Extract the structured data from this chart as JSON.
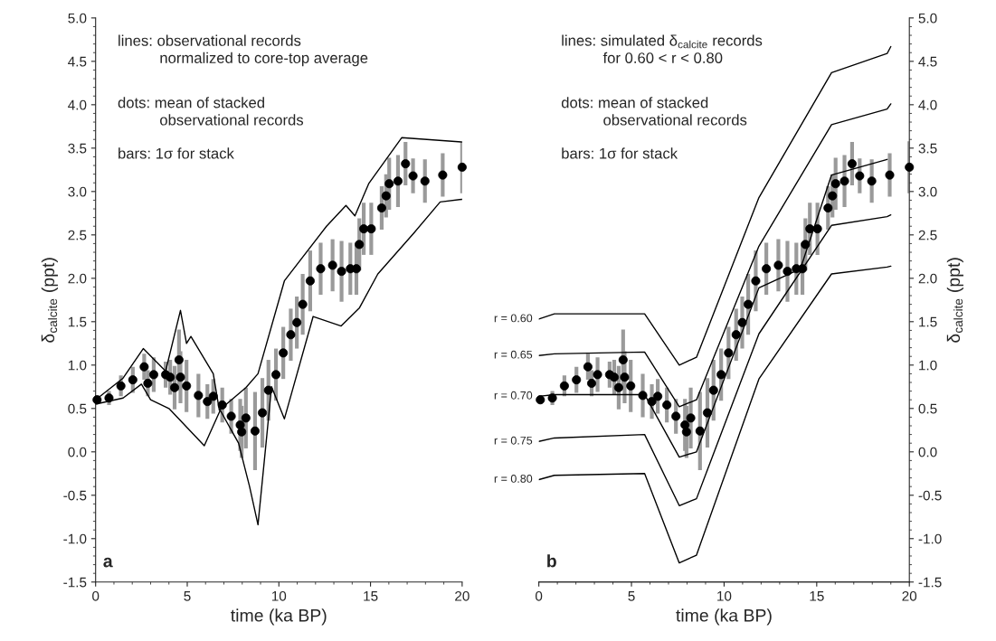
{
  "chart_data": [
    {
      "type": "line",
      "xlabel": "time (ka BP)",
      "ylabel": "δ$_{calcite}$ (ppt)",
      "xlim": [
        0,
        20
      ],
      "xticks": [
        0,
        5,
        10,
        15,
        20
      ],
      "ylim": [
        -1.5,
        5.0
      ],
      "yticks": [
        {
          "value": -1.5,
          "label": "-1.5"
        },
        {
          "value": -1.0,
          "label": "-1.0"
        },
        {
          "value": -0.5,
          "label": "-0.5"
        },
        {
          "value": 0,
          "label": "0.0"
        },
        {
          "value": 0.5,
          "label": "0.5"
        },
        {
          "value": 1.0,
          "label": "1.0"
        },
        {
          "value": 1.5,
          "label": "1.5"
        },
        {
          "value": 2.0,
          "label": "2.0"
        },
        {
          "value": 2.5,
          "label": "2.5"
        },
        {
          "value": 3.0,
          "label": "3.0"
        },
        {
          "value": 3.5,
          "label": "3.5"
        },
        {
          "value": 4.0,
          "label": "4.0"
        },
        {
          "value": 4.5,
          "label": "4.5"
        },
        {
          "value": 5.0,
          "label": "5.0"
        }
      ],
      "grid": false,
      "legend": false,
      "annotations": [
        "lines: observational records\n          normalized to core-top average",
        "dots: mean of stacked\n          observational records",
        "bars: 1σ for stack",
        "a"
      ],
      "series": [
        {
          "color": "#000000",
          "x": [
            0,
            1.5,
            2.6,
            3.82,
            4.63,
            4.96,
            5.2,
            6.42,
            6.75,
            8.2,
            8.86,
            10.3,
            12.6,
            13.66,
            14.15,
            14.9,
            16.7,
            20
          ],
          "values": [
            0.6,
            0.85,
            1.19,
            0.93,
            1.63,
            1.25,
            1.33,
            0.9,
            0.48,
            0.74,
            0.9,
            1.97,
            2.6,
            2.84,
            2.72,
            3.09,
            3.62,
            3.57
          ]
        },
        {
          "color": "#000000",
          "x": [
            0,
            1.5,
            2.5,
            3.0,
            4.0,
            5.93,
            6.8,
            7.8,
            8.4,
            8.86,
            9.3,
            9.6,
            10.3,
            11.87,
            13.4,
            14.4,
            15.4,
            17.4,
            18.8,
            20
          ],
          "values": [
            0.55,
            0.62,
            0.78,
            0.6,
            0.5,
            0.07,
            0.48,
            0.1,
            -0.4,
            -0.84,
            0.1,
            0.75,
            0.38,
            1.56,
            1.45,
            1.66,
            2.05,
            2.53,
            2.88,
            2.91
          ]
        },
        {
          "type": "scatter",
          "color": "#000000",
          "marker": "circle",
          "x": [
            0.08,
            0.73,
            1.38,
            2.03,
            2.65,
            2.85,
            3.17,
            3.82,
            4.07,
            4.31,
            4.55,
            4.63,
            4.96,
            5.61,
            6.1,
            6.42,
            6.91,
            7.4,
            7.89,
            7.97,
            8.2,
            8.7,
            9.1,
            9.43,
            9.84,
            10.24,
            10.65,
            10.98,
            11.3,
            11.71,
            12.28,
            12.93,
            13.42,
            13.9,
            14.23,
            14.39,
            14.63,
            15.04,
            15.61,
            15.85,
            16.02,
            16.5,
            16.91,
            17.32,
            17.97,
            18.94,
            20.0
          ],
          "values": [
            0.6,
            0.62,
            0.76,
            0.83,
            0.98,
            0.79,
            0.89,
            0.89,
            0.86,
            0.74,
            1.06,
            0.86,
            0.76,
            0.65,
            0.58,
            0.64,
            0.54,
            0.41,
            0.31,
            0.23,
            0.39,
            0.24,
            0.45,
            0.71,
            0.89,
            1.14,
            1.35,
            1.49,
            1.7,
            1.97,
            2.11,
            2.15,
            2.08,
            2.11,
            2.11,
            2.39,
            2.57,
            2.57,
            2.81,
            2.95,
            3.09,
            3.12,
            3.32,
            3.18,
            3.12,
            3.19,
            3.28
          ],
          "errors": [
            0.05,
            0.08,
            0.12,
            0.15,
            0.15,
            0.15,
            0.2,
            0.15,
            0.2,
            0.25,
            0.35,
            0.3,
            0.3,
            0.25,
            0.2,
            0.2,
            0.2,
            0.2,
            0.3,
            0.3,
            0.35,
            0.45,
            0.4,
            0.35,
            0.3,
            0.3,
            0.3,
            0.3,
            0.35,
            0.35,
            0.3,
            0.3,
            0.35,
            0.3,
            0.3,
            0.3,
            0.3,
            0.3,
            0.25,
            0.25,
            0.3,
            0.3,
            0.25,
            0.2,
            0.25,
            0.25,
            0.3
          ]
        }
      ]
    },
    {
      "type": "line",
      "xlabel": "time (ka BP)",
      "y2label": "δ$_{calcite}$ (ppt)",
      "xlim": [
        0,
        20
      ],
      "xticks": [
        0,
        5,
        10,
        15,
        20
      ],
      "y2lim": [
        -1.5,
        5.0
      ],
      "y2ticks": [
        {
          "value": -1.5,
          "label": "-1.5"
        },
        {
          "value": -1.0,
          "label": "-1.0"
        },
        {
          "value": -0.5,
          "label": "-0.5"
        },
        {
          "value": 0,
          "label": "0.0"
        },
        {
          "value": 0.5,
          "label": "0.5"
        },
        {
          "value": 1.0,
          "label": "1.0"
        },
        {
          "value": 1.5,
          "label": "1.5"
        },
        {
          "value": 2.0,
          "label": "2.0"
        },
        {
          "value": 2.5,
          "label": "2.5"
        },
        {
          "value": 3.0,
          "label": "3.0"
        },
        {
          "value": 3.5,
          "label": "3.5"
        },
        {
          "value": 4.0,
          "label": "4.0"
        },
        {
          "value": 4.5,
          "label": "4.5"
        },
        {
          "value": 5.0,
          "label": "5.0"
        }
      ],
      "grid": false,
      "legend": false,
      "annotations": [
        "lines: simulated δ$_{calcite}$ records\n          for 0.60 < r < 0.80",
        "dots: mean of stacked\n          observational records",
        "bars: 1σ for stack",
        "b"
      ],
      "series": [
        {
          "axis": "y2",
          "name": "r = 0.60",
          "color": "#000000",
          "x": [
            0,
            0.84,
            5.71,
            7.58,
            8.51,
            11.88,
            15.8,
            18.8,
            19.0
          ],
          "values": [
            1.53,
            1.59,
            1.59,
            1.0,
            1.09,
            2.93,
            4.37,
            4.59,
            4.67
          ]
        },
        {
          "axis": "y2",
          "name": "r = 0.65",
          "color": "#000000",
          "x": [
            0,
            0.84,
            5.71,
            7.58,
            8.51,
            11.88,
            15.8,
            18.8,
            19.0
          ],
          "values": [
            1.11,
            1.13,
            1.15,
            0.52,
            0.6,
            2.37,
            3.77,
            3.95,
            4.01
          ]
        },
        {
          "axis": "y2",
          "name": "r = 0.70",
          "color": "#000000",
          "x": [
            0,
            0.84,
            5.71,
            7.58,
            8.51,
            11.88,
            14.12,
            15.8,
            18.8
          ],
          "values": [
            0.64,
            0.66,
            0.66,
            -0.06,
            0.0,
            1.89,
            2.11,
            3.19,
            3.37
          ]
        },
        {
          "axis": "y2",
          "name": "r = 0.75",
          "color": "#000000",
          "x": [
            0,
            0.84,
            5.71,
            7.58,
            8.51,
            11.88,
            15.8,
            18.8,
            19.0
          ],
          "values": [
            0.12,
            0.16,
            0.2,
            -0.62,
            -0.54,
            1.36,
            2.61,
            2.71,
            2.73
          ]
        },
        {
          "axis": "y2",
          "name": "r = 0.80",
          "color": "#000000",
          "x": [
            0,
            0.84,
            5.71,
            7.58,
            8.51,
            11.88,
            15.8,
            18.8,
            19.0
          ],
          "values": [
            -0.32,
            -0.27,
            -0.25,
            -1.28,
            -1.19,
            0.84,
            2.05,
            2.13,
            2.14
          ]
        },
        {
          "type": "scatter",
          "axis": "y2",
          "color": "#000000",
          "marker": "circle",
          "x": [
            0.08,
            0.73,
            1.38,
            2.03,
            2.65,
            2.85,
            3.17,
            3.82,
            4.07,
            4.31,
            4.55,
            4.63,
            4.96,
            5.61,
            6.1,
            6.42,
            6.91,
            7.4,
            7.89,
            7.97,
            8.2,
            8.7,
            9.1,
            9.43,
            9.84,
            10.24,
            10.65,
            10.98,
            11.3,
            11.71,
            12.28,
            12.93,
            13.42,
            13.9,
            14.23,
            14.39,
            14.63,
            15.04,
            15.61,
            15.85,
            16.02,
            16.5,
            16.91,
            17.32,
            17.97,
            18.94,
            20.0
          ],
          "values": [
            0.6,
            0.62,
            0.76,
            0.83,
            0.98,
            0.79,
            0.89,
            0.89,
            0.86,
            0.74,
            1.06,
            0.86,
            0.76,
            0.65,
            0.58,
            0.64,
            0.54,
            0.41,
            0.31,
            0.23,
            0.39,
            0.24,
            0.45,
            0.71,
            0.89,
            1.14,
            1.35,
            1.49,
            1.7,
            1.97,
            2.11,
            2.15,
            2.08,
            2.11,
            2.11,
            2.39,
            2.57,
            2.57,
            2.81,
            2.95,
            3.09,
            3.12,
            3.32,
            3.18,
            3.12,
            3.19,
            3.28
          ],
          "errors": [
            0.05,
            0.08,
            0.12,
            0.15,
            0.15,
            0.15,
            0.2,
            0.15,
            0.2,
            0.25,
            0.35,
            0.3,
            0.3,
            0.25,
            0.2,
            0.2,
            0.2,
            0.2,
            0.3,
            0.3,
            0.35,
            0.45,
            0.4,
            0.35,
            0.3,
            0.3,
            0.3,
            0.3,
            0.35,
            0.35,
            0.3,
            0.3,
            0.35,
            0.3,
            0.3,
            0.3,
            0.3,
            0.3,
            0.25,
            0.25,
            0.3,
            0.3,
            0.25,
            0.2,
            0.25,
            0.25,
            0.3
          ]
        }
      ]
    }
  ]
}
